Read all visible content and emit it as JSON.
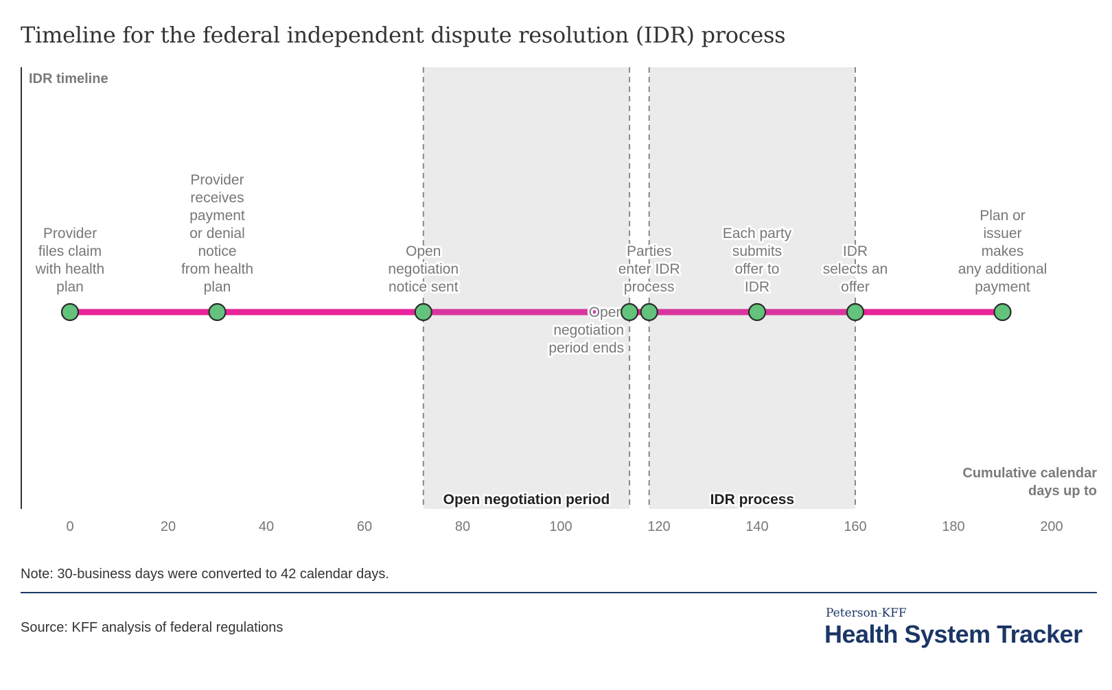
{
  "title": "Timeline for the federal independent dispute resolution (IDR) process",
  "chart_data": {
    "type": "timeline",
    "title": "Timeline for the federal independent dispute resolution (IDR) process",
    "ylabel": "IDR timeline",
    "xlabel": "Cumulative calendar days up to",
    "xlim": [
      -10,
      210
    ],
    "xticks": [
      0,
      20,
      40,
      60,
      80,
      100,
      120,
      140,
      160,
      180,
      200
    ],
    "grid": false,
    "line_color": "#e8249a",
    "marker_color": "#63c37c",
    "shaded_periods": [
      {
        "name": "Open negotiation period",
        "start": 72,
        "end": 114
      },
      {
        "name": "IDR process",
        "start": 118,
        "end": 160
      }
    ],
    "events": [
      {
        "day": 0,
        "label": "Provider files claim with health plan",
        "lines": [
          "Provider",
          "files claim",
          "with health",
          "plan"
        ],
        "position": "above"
      },
      {
        "day": 30,
        "label": "Provider receives payment or denial notice from health plan",
        "lines": [
          "Provider",
          "receives",
          "payment",
          "or denial",
          "notice",
          "from health",
          "plan"
        ],
        "position": "above"
      },
      {
        "day": 72,
        "label": "Open negotiation notice sent",
        "lines": [
          "Open",
          "negotiation",
          "notice sent"
        ],
        "position": "above"
      },
      {
        "day": 114,
        "label": "Open negotiation period ends",
        "lines": [
          "Open",
          "negotiation",
          "period ends"
        ],
        "position": "left"
      },
      {
        "day": 118,
        "label": "Parties enter IDR process",
        "lines": [
          "Parties",
          "enter IDR",
          "process"
        ],
        "position": "above"
      },
      {
        "day": 140,
        "label": "Each party submits offer to IDR",
        "lines": [
          "Each party",
          "submits",
          "offer to",
          "IDR"
        ],
        "position": "above"
      },
      {
        "day": 160,
        "label": "IDR selects an offer",
        "lines": [
          "IDR",
          "selects an",
          "offer"
        ],
        "position": "above"
      },
      {
        "day": 190,
        "label": "Plan or issuer makes any additional payment",
        "lines": [
          "Plan or",
          "issuer",
          "makes",
          "any additional",
          "payment"
        ],
        "position": "above"
      }
    ]
  },
  "axis_title_lines": [
    "Cumulative calendar",
    "days up to"
  ],
  "note": "Note: 30-business days were converted to 42 calendar days.",
  "source": "Source: KFF analysis of federal regulations",
  "brand": {
    "small_left": "Peterson",
    "small_dash": "-",
    "small_right": "KFF",
    "big": "Health System Tracker"
  }
}
